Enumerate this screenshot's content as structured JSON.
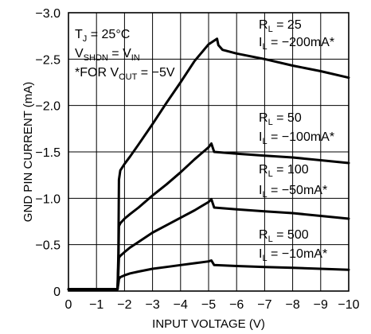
{
  "chart_data": {
    "type": "line",
    "xlabel": "INPUT VOLTAGE (V)",
    "ylabel": "GND PIN CURRENT (mA)",
    "xlim": [
      0,
      -10
    ],
    "ylim": [
      0,
      -3.0
    ],
    "x_ticks": [
      0,
      -1,
      -2,
      -3,
      -4,
      -5,
      -6,
      -7,
      -8,
      -9,
      -10
    ],
    "x_tick_labels": [
      "0",
      "−1",
      "−2",
      "−3",
      "−4",
      "−5",
      "−6",
      "−7",
      "−8",
      "−9",
      "−10"
    ],
    "y_ticks": [
      0,
      -0.5,
      -1.0,
      -1.5,
      -2.0,
      -2.5,
      -3.0
    ],
    "y_tick_labels": [
      "0",
      "−0.5",
      "−1.0",
      "−1.5",
      "−2.0",
      "−2.5",
      "−3.0"
    ],
    "grid": true,
    "conditions": [
      {
        "main": "T",
        "sub": "J",
        "rest": " = 25°C"
      },
      {
        "main": "V",
        "sub": "SHDN",
        "rest": " = V",
        "sub2": "IN"
      },
      {
        "main": "*FOR V",
        "sub": "OUT",
        "rest": " = −5V"
      }
    ],
    "series": [
      {
        "label_1": {
          "main": "R",
          "sub": "L",
          "rest": " = 25"
        },
        "label_2": {
          "main": "I",
          "sub": "L",
          "rest": " = −200mA*"
        },
        "x": [
          0,
          -1.75,
          -1.78,
          -1.8,
          -1.85,
          -2.0,
          -2.2,
          -2.5,
          -3.0,
          -3.5,
          -4.0,
          -4.5,
          -5.0,
          -5.3,
          -5.35,
          -5.5,
          -6.0,
          -7.0,
          -8.0,
          -9.0,
          -10.0
        ],
        "y": [
          -0.02,
          -0.02,
          -0.4,
          -1.2,
          -1.3,
          -1.37,
          -1.45,
          -1.58,
          -1.8,
          -2.03,
          -2.25,
          -2.48,
          -2.66,
          -2.72,
          -2.65,
          -2.6,
          -2.56,
          -2.5,
          -2.43,
          -2.37,
          -2.3
        ]
      },
      {
        "label_1": {
          "main": "R",
          "sub": "L",
          "rest": " = 50"
        },
        "label_2": {
          "main": "I",
          "sub": "L",
          "rest": " = −100mA*"
        },
        "x": [
          0,
          -1.75,
          -1.78,
          -1.8,
          -1.85,
          -2.0,
          -2.2,
          -2.5,
          -3.0,
          -3.5,
          -4.0,
          -4.5,
          -5.0,
          -5.1,
          -5.2,
          -6.0,
          -7.0,
          -8.0,
          -9.0,
          -10.0
        ],
        "y": [
          -0.02,
          -0.02,
          -0.3,
          -0.7,
          -0.73,
          -0.78,
          -0.83,
          -0.9,
          -1.03,
          -1.15,
          -1.28,
          -1.42,
          -1.55,
          -1.59,
          -1.5,
          -1.48,
          -1.46,
          -1.44,
          -1.41,
          -1.38
        ]
      },
      {
        "label_1": {
          "main": "R",
          "sub": "L",
          "rest": " = 100"
        },
        "label_2": {
          "main": "I",
          "sub": "L",
          "rest": " = −50mA*"
        },
        "x": [
          0,
          -1.75,
          -1.78,
          -1.8,
          -1.85,
          -2.0,
          -2.2,
          -2.5,
          -3.0,
          -3.5,
          -4.0,
          -4.5,
          -5.0,
          -5.1,
          -5.2,
          -6.0,
          -7.0,
          -8.0,
          -9.0,
          -10.0
        ],
        "y": [
          -0.02,
          -0.02,
          -0.2,
          -0.36,
          -0.38,
          -0.42,
          -0.47,
          -0.53,
          -0.63,
          -0.71,
          -0.79,
          -0.87,
          -0.96,
          -0.99,
          -0.9,
          -0.88,
          -0.86,
          -0.84,
          -0.81,
          -0.78
        ]
      },
      {
        "label_1": {
          "main": "R",
          "sub": "L",
          "rest": " = 500"
        },
        "label_2": {
          "main": "I",
          "sub": "L",
          "rest": " = −10mA*"
        },
        "x": [
          0,
          -1.75,
          -1.78,
          -1.8,
          -1.85,
          -2.0,
          -2.2,
          -2.5,
          -3.0,
          -3.5,
          -4.0,
          -4.5,
          -5.0,
          -5.1,
          -5.2,
          -6.0,
          -7.0,
          -8.0,
          -9.0,
          -10.0
        ],
        "y": [
          -0.02,
          -0.02,
          -0.08,
          -0.13,
          -0.15,
          -0.17,
          -0.19,
          -0.21,
          -0.24,
          -0.26,
          -0.28,
          -0.3,
          -0.32,
          -0.33,
          -0.28,
          -0.27,
          -0.26,
          -0.25,
          -0.24,
          -0.23
        ]
      }
    ]
  }
}
